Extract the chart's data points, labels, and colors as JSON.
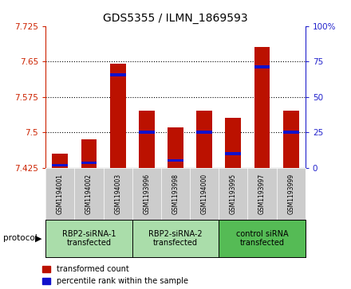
{
  "title": "GDS5355 / ILMN_1869593",
  "samples": [
    "GSM1194001",
    "GSM1194002",
    "GSM1194003",
    "GSM1193996",
    "GSM1193998",
    "GSM1194000",
    "GSM1193995",
    "GSM1193997",
    "GSM1193999"
  ],
  "red_tops": [
    7.455,
    7.485,
    7.645,
    7.545,
    7.51,
    7.545,
    7.53,
    7.68,
    7.545
  ],
  "blue_pos": [
    7.43,
    7.435,
    7.622,
    7.5,
    7.44,
    7.5,
    7.455,
    7.638,
    7.5
  ],
  "baseline": 7.425,
  "ylim": [
    7.425,
    7.725
  ],
  "yticks_left": [
    7.425,
    7.5,
    7.575,
    7.65,
    7.725
  ],
  "yticks_right_vals": [
    0,
    25,
    50,
    75,
    100
  ],
  "yticks_right_labels": [
    "0",
    "25",
    "50",
    "75",
    "100%"
  ],
  "protocols": [
    {
      "label": "RBP2-siRNA-1\ntransfected",
      "start": 0,
      "end": 3,
      "color": "#aaddaa"
    },
    {
      "label": "RBP2-siRNA-2\ntransfected",
      "start": 3,
      "end": 6,
      "color": "#aaddaa"
    },
    {
      "label": "control siRNA\ntransfected",
      "start": 6,
      "end": 9,
      "color": "#55bb55"
    }
  ],
  "red_color": "#bb1100",
  "blue_color": "#1111cc",
  "bar_width": 0.55,
  "blue_bar_height": 0.006,
  "left_axis_color": "#cc2200",
  "right_axis_color": "#2222cc",
  "sample_cell_color": "#cccccc",
  "plot_bg": "#ffffff"
}
